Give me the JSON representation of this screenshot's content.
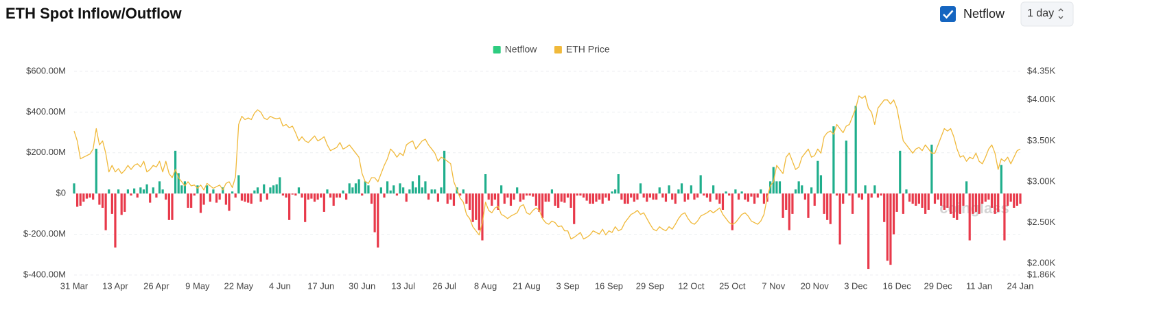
{
  "chart_data": {
    "type": "bar_line",
    "title": "ETH Spot Inflow/Outflow",
    "controls": {
      "checkbox_label": "Netflow",
      "checked": true,
      "interval": "1 day"
    },
    "watermark": "coinglass",
    "legend": "top",
    "grid": true,
    "categories": [
      "31 Mar",
      null,
      null,
      null,
      null,
      null,
      null,
      null,
      null,
      null,
      null,
      null,
      null,
      "13 Apr",
      null,
      null,
      null,
      null,
      null,
      null,
      null,
      null,
      null,
      null,
      null,
      null,
      "26 Apr",
      null,
      null,
      null,
      null,
      null,
      null,
      null,
      null,
      null,
      null,
      null,
      null,
      "9 May",
      null,
      null,
      null,
      null,
      null,
      null,
      null,
      null,
      null,
      null,
      null,
      null,
      "22 May",
      null,
      null,
      null,
      null,
      null,
      null,
      null,
      null,
      null,
      null,
      null,
      null,
      "4 Jun",
      null,
      null,
      null,
      null,
      null,
      null,
      null,
      null,
      null,
      null,
      null,
      null,
      "17 Jun",
      null,
      null,
      null,
      null,
      null,
      null,
      null,
      null,
      null,
      null,
      null,
      null,
      "30 Jun",
      null,
      null,
      null,
      null,
      null,
      null,
      null,
      null,
      null,
      null,
      null,
      null,
      "13 Jul",
      null,
      null,
      null,
      null,
      null,
      null,
      null,
      null,
      null,
      null,
      null,
      null,
      "26 Jul",
      null,
      null,
      null,
      null,
      null,
      null,
      null,
      null,
      null,
      null,
      null,
      null,
      "8 Aug",
      null,
      null,
      null,
      null,
      null,
      null,
      null,
      null,
      null,
      null,
      null,
      null,
      "21 Aug",
      null,
      null,
      null,
      null,
      null,
      null,
      null,
      null,
      null,
      null,
      null,
      null,
      "3 Sep",
      null,
      null,
      null,
      null,
      null,
      null,
      null,
      null,
      null,
      null,
      null,
      null,
      "16 Sep",
      null,
      null,
      null,
      null,
      null,
      null,
      null,
      null,
      null,
      null,
      null,
      null,
      "29 Sep",
      null,
      null,
      null,
      null,
      null,
      null,
      null,
      null,
      null,
      null,
      null,
      null,
      "12 Oct",
      null,
      null,
      null,
      null,
      null,
      null,
      null,
      null,
      null,
      null,
      null,
      null,
      "25 Oct",
      null,
      null,
      null,
      null,
      null,
      null,
      null,
      null,
      null,
      null,
      null,
      null,
      "7 Nov",
      null,
      null,
      null,
      null,
      null,
      null,
      null,
      null,
      null,
      null,
      null,
      null,
      "20 Nov",
      null,
      null,
      null,
      null,
      null,
      null,
      null,
      null,
      null,
      null,
      null,
      null,
      "3 Dec",
      null,
      null,
      null,
      null,
      null,
      null,
      null,
      null,
      null,
      null,
      null,
      null,
      "16 Dec",
      null,
      null,
      null,
      null,
      null,
      null,
      null,
      null,
      null,
      null,
      null,
      null,
      "29 Dec",
      null,
      null,
      null,
      null,
      null,
      null,
      null,
      null,
      null,
      null,
      null,
      null,
      "11 Jan",
      null,
      null,
      null,
      null,
      null,
      null,
      null,
      null,
      null,
      null,
      null,
      null,
      "24 Jan"
    ],
    "series": [
      {
        "name": "Netflow",
        "type": "bar",
        "color": "#1fae8c",
        "negative_color": "#e8394a",
        "legend_color": "#2ecc80",
        "values": [
          50,
          -65,
          -60,
          -40,
          -25,
          -20,
          -30,
          220,
          -55,
          -70,
          -180,
          20,
          -100,
          -265,
          20,
          -105,
          -90,
          20,
          -10,
          25,
          -20,
          30,
          20,
          45,
          -45,
          30,
          -20,
          60,
          20,
          -30,
          -130,
          -130,
          210,
          100,
          40,
          60,
          -70,
          -70,
          -10,
          40,
          -95,
          -55,
          40,
          -40,
          20,
          -45,
          -30,
          30,
          -55,
          -85,
          10,
          -20,
          90,
          -35,
          -40,
          -45,
          -50,
          15,
          30,
          -40,
          45,
          -30,
          30,
          40,
          45,
          80,
          -10,
          -20,
          -130,
          -5,
          -10,
          30,
          -20,
          -140,
          -30,
          -25,
          -40,
          -30,
          -20,
          -90,
          20,
          -20,
          -60,
          -20,
          -20,
          15,
          -30,
          50,
          30,
          50,
          70,
          -10,
          60,
          40,
          -50,
          -190,
          -265,
          30,
          -20,
          60,
          15,
          40,
          -10,
          50,
          30,
          -40,
          20,
          60,
          30,
          90,
          30,
          60,
          -30,
          20,
          20,
          -40,
          30,
          210,
          -50,
          -30,
          -60,
          30,
          -10,
          20,
          -50,
          -80,
          -140,
          -130,
          -180,
          -230,
          95,
          -30,
          -60,
          -30,
          -80,
          40,
          -50,
          -20,
          -60,
          -30,
          30,
          -40,
          -30,
          -10,
          -10,
          -15,
          -60,
          -90,
          -120,
          -40,
          -40,
          20,
          -60,
          -70,
          -40,
          -45,
          -20,
          -70,
          -150,
          -10,
          -10,
          -20,
          -35,
          -50,
          -50,
          -40,
          -30,
          -50,
          -20,
          -35,
          10,
          20,
          95,
          -30,
          -50,
          -50,
          -20,
          -40,
          -30,
          50,
          -20,
          -40,
          -20,
          -30,
          -30,
          30,
          -20,
          -40,
          40,
          -30,
          -50,
          20,
          50,
          -40,
          -30,
          40,
          -30,
          -20,
          90,
          -10,
          -20,
          -40,
          40,
          -30,
          -50,
          -80,
          10,
          -10,
          -180,
          20,
          -30,
          10,
          -30,
          -40,
          -15,
          -50,
          -20,
          20,
          -50,
          -40,
          60,
          130,
          60,
          60,
          -120,
          -80,
          -180,
          -100,
          20,
          60,
          40,
          -30,
          -120,
          30,
          -60,
          160,
          90,
          -100,
          -130,
          -150,
          330,
          -10,
          -250,
          -50,
          260,
          -10,
          -100,
          430,
          -20,
          -30,
          40,
          -370,
          -20,
          40,
          -20,
          -10,
          -140,
          -330,
          -350,
          -200,
          -90,
          210,
          -100,
          20,
          -40,
          -50,
          -60,
          -50,
          -70,
          -100,
          -80,
          240,
          -50,
          -30,
          -60,
          -80,
          -70,
          -100,
          -120,
          -130,
          -100,
          -60,
          60,
          -230,
          -100,
          -90,
          -100,
          -50,
          -40,
          -30,
          -70,
          -100,
          -90,
          140,
          -230,
          -60,
          -40,
          -70,
          -60,
          -50
        ]
      },
      {
        "name": "ETH Price",
        "type": "line",
        "axis": "y2",
        "color": "#f0b93a",
        "values": [
          3.62,
          3.5,
          3.28,
          3.3,
          3.32,
          3.34,
          3.4,
          3.65,
          3.45,
          3.5,
          3.35,
          3.12,
          3.2,
          3.12,
          3.16,
          3.1,
          3.14,
          3.2,
          3.15,
          3.2,
          3.22,
          3.18,
          3.25,
          3.12,
          3.15,
          3.2,
          3.18,
          3.25,
          3.12,
          3.25,
          3.1,
          3.05,
          3.15,
          3.05,
          3.0,
          2.95,
          3.0,
          2.95,
          2.96,
          2.92,
          2.96,
          2.9,
          2.98,
          2.95,
          2.92,
          2.94,
          2.96,
          2.9,
          2.98,
          3.0,
          2.93,
          3.06,
          3.7,
          3.8,
          3.76,
          3.78,
          3.76,
          3.84,
          3.88,
          3.85,
          3.78,
          3.76,
          3.8,
          3.78,
          3.77,
          3.78,
          3.68,
          3.7,
          3.66,
          3.68,
          3.6,
          3.5,
          3.55,
          3.5,
          3.48,
          3.52,
          3.56,
          3.5,
          3.52,
          3.55,
          3.45,
          3.38,
          3.4,
          3.42,
          3.48,
          3.4,
          3.42,
          3.45,
          3.4,
          3.35,
          3.3,
          3.1,
          3.0,
          2.98,
          3.05,
          3.05,
          3.0,
          3.1,
          3.2,
          3.28,
          3.4,
          3.36,
          3.3,
          3.35,
          3.32,
          3.45,
          3.48,
          3.5,
          3.4,
          3.45,
          3.5,
          3.52,
          3.45,
          3.4,
          3.35,
          3.25,
          3.3,
          3.28,
          3.25,
          3.22,
          3.0,
          2.9,
          2.8,
          2.75,
          2.6,
          2.55,
          2.45,
          2.4,
          2.35,
          2.5,
          2.75,
          2.65,
          2.62,
          2.68,
          2.7,
          2.6,
          2.58,
          2.55,
          2.58,
          2.6,
          2.62,
          2.7,
          2.72,
          2.62,
          2.6,
          2.65,
          2.68,
          2.65,
          2.55,
          2.5,
          2.48,
          2.52,
          2.5,
          2.45,
          2.46,
          2.4,
          2.4,
          2.3,
          2.32,
          2.35,
          2.38,
          2.3,
          2.32,
          2.35,
          2.4,
          2.38,
          2.36,
          2.42,
          2.35,
          2.4,
          2.38,
          2.45,
          2.4,
          2.42,
          2.5,
          2.55,
          2.6,
          2.62,
          2.65,
          2.6,
          2.62,
          2.55,
          2.48,
          2.42,
          2.4,
          2.45,
          2.42,
          2.4,
          2.45,
          2.42,
          2.48,
          2.55,
          2.6,
          2.62,
          2.55,
          2.5,
          2.48,
          2.52,
          2.58,
          2.6,
          2.62,
          2.65,
          2.62,
          2.65,
          2.68,
          2.6,
          2.55,
          2.5,
          2.48,
          2.5,
          2.55,
          2.6,
          2.62,
          2.58,
          2.52,
          2.5,
          2.48,
          2.52,
          2.6,
          2.8,
          2.95,
          3.0,
          3.2,
          3.15,
          3.1,
          3.3,
          3.35,
          3.25,
          3.15,
          3.18,
          3.3,
          3.35,
          3.4,
          3.3,
          3.32,
          3.4,
          3.35,
          3.55,
          3.6,
          3.62,
          3.58,
          3.7,
          3.65,
          3.6,
          3.68,
          3.7,
          3.8,
          3.9,
          4.05,
          4.02,
          4.05,
          3.9,
          3.85,
          3.7,
          3.9,
          3.95,
          4.0,
          4.0,
          3.95,
          4.0,
          3.9,
          3.7,
          3.5,
          3.45,
          3.4,
          3.35,
          3.4,
          3.42,
          3.38,
          3.45,
          3.4,
          3.35,
          3.35,
          3.45,
          3.55,
          3.65,
          3.62,
          3.65,
          3.55,
          3.4,
          3.3,
          3.32,
          3.25,
          3.3,
          3.28,
          3.35,
          3.25,
          3.22,
          3.3,
          3.4,
          3.45,
          3.35,
          3.15,
          3.28,
          3.25,
          3.3,
          3.22,
          3.3,
          3.38,
          3.4
        ]
      }
    ],
    "ylim": [
      -400,
      600
    ],
    "yticks": [
      {
        "value": 600,
        "label": "$600.00M"
      },
      {
        "value": 400,
        "label": "$400.00M"
      },
      {
        "value": 200,
        "label": "$200.00M"
      },
      {
        "value": 0,
        "label": "$0"
      },
      {
        "value": -200,
        "label": "$-200.00M"
      },
      {
        "value": -400,
        "label": "$-400.00M"
      }
    ],
    "y2lim": [
      1.86,
      4.35
    ],
    "y2ticks": [
      {
        "value": 4.35,
        "label": "$4.35K"
      },
      {
        "value": 4.0,
        "label": "$4.00K"
      },
      {
        "value": 3.5,
        "label": "$3.50K"
      },
      {
        "value": 3.0,
        "label": "$3.00K"
      },
      {
        "value": 2.5,
        "label": "$2.50K"
      },
      {
        "value": 2.0,
        "label": "$2.00K"
      },
      {
        "value": 1.86,
        "label": "$1.86K"
      }
    ]
  }
}
